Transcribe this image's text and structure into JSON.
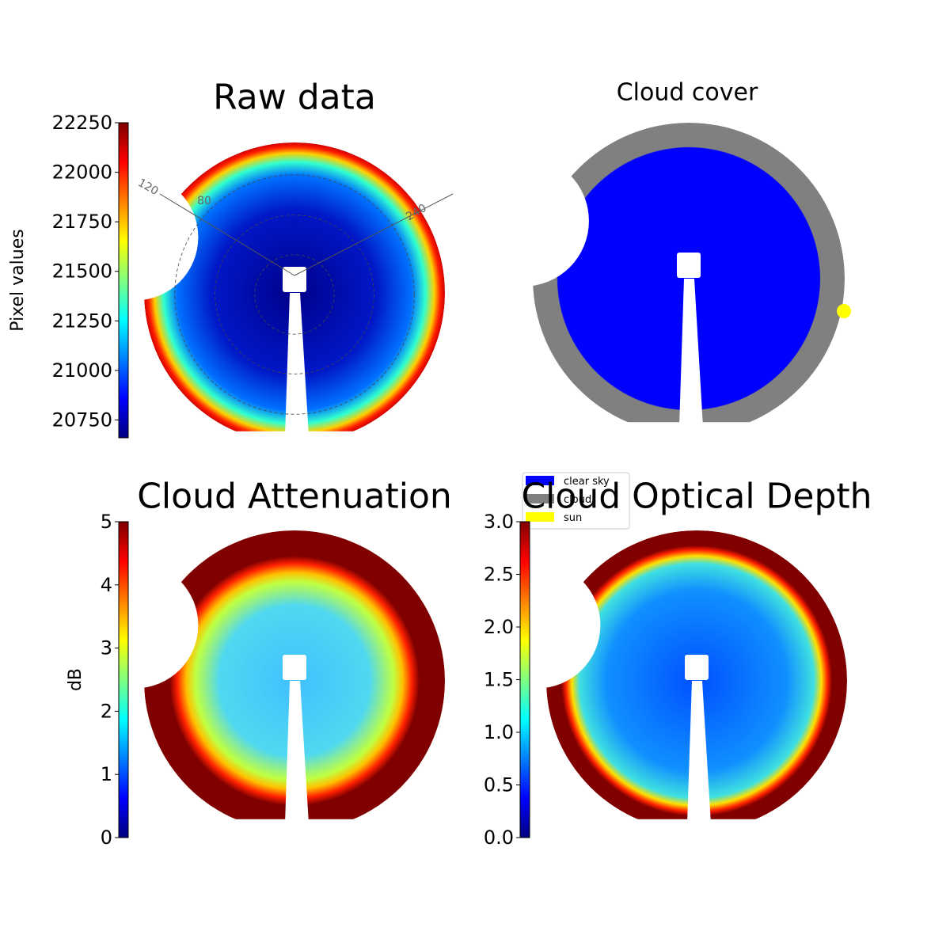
{
  "chart_data": [
    {
      "type": "image",
      "title": "Raw data",
      "colorbar": {
        "label": "Pixel values",
        "lim": [
          20660,
          22250
        ],
        "ticks": [
          20750,
          21000,
          21250,
          21500,
          21750,
          22000,
          22250
        ]
      },
      "annotations": [
        "120",
        "80",
        "240"
      ]
    },
    {
      "type": "image",
      "title": "Cloud cover",
      "legend": [
        {
          "name": "clear sky",
          "color": "#0000ff"
        },
        {
          "name": "cloud",
          "color": "#808080"
        },
        {
          "name": "sun",
          "color": "#ffff00"
        }
      ]
    },
    {
      "type": "image",
      "title": "Cloud Attenuation",
      "colorbar": {
        "label": "dB",
        "lim": [
          0,
          5
        ],
        "ticks": [
          0,
          1,
          2,
          3,
          4,
          5
        ]
      }
    },
    {
      "type": "image",
      "title": "Cloud Optical Depth",
      "colorbar": {
        "lim": [
          0,
          3
        ],
        "ticks": [
          {
            "value": 0,
            "label": "0.0"
          },
          {
            "value": 0.5,
            "label": "0.5"
          },
          {
            "value": 1,
            "label": "1.0"
          },
          {
            "value": 1.5,
            "label": "1.5"
          },
          {
            "value": 2,
            "label": "2.0"
          },
          {
            "value": 2.5,
            "label": "2.5"
          },
          {
            "value": 3,
            "label": "3.0"
          }
        ]
      }
    }
  ]
}
